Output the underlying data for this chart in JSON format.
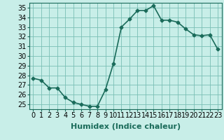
{
  "x": [
    0,
    1,
    2,
    3,
    4,
    5,
    6,
    7,
    8,
    9,
    10,
    11,
    12,
    13,
    14,
    15,
    16,
    17,
    18,
    19,
    20,
    21,
    22,
    23
  ],
  "y": [
    27.7,
    27.5,
    26.7,
    26.7,
    25.7,
    25.2,
    25.0,
    24.8,
    24.8,
    26.5,
    29.2,
    33.0,
    33.8,
    34.7,
    34.7,
    35.2,
    33.7,
    33.7,
    33.5,
    32.8,
    32.2,
    32.1,
    32.2,
    30.7
  ],
  "line_color": "#1a6b5a",
  "marker": "D",
  "marker_size": 2.5,
  "bg_color": "#c8eee8",
  "grid_color": "#7abfb5",
  "xlabel": "Humidex (Indice chaleur)",
  "xlim": [
    -0.5,
    23.5
  ],
  "ylim": [
    24.5,
    35.5
  ],
  "yticks": [
    25,
    26,
    27,
    28,
    29,
    30,
    31,
    32,
    33,
    34,
    35
  ],
  "xtick_labels": [
    "0",
    "1",
    "2",
    "3",
    "4",
    "5",
    "6",
    "7",
    "8",
    "9",
    "10",
    "11",
    "12",
    "13",
    "14",
    "15",
    "16",
    "17",
    "18",
    "19",
    "20",
    "21",
    "22",
    "23"
  ],
  "tick_fontsize": 7,
  "xlabel_fontsize": 8,
  "linewidth": 1.2
}
